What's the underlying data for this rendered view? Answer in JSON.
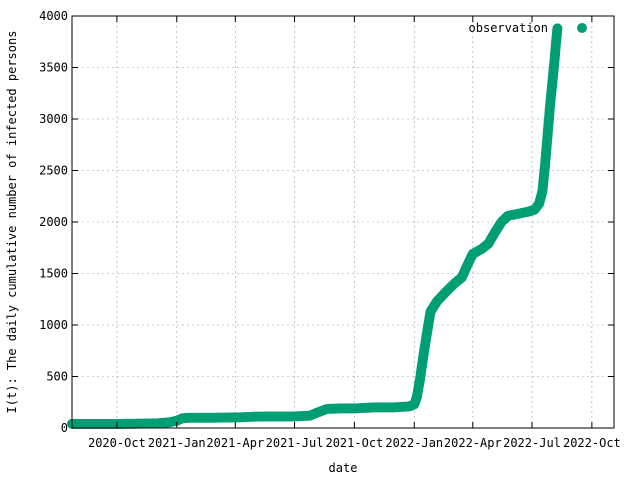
{
  "chart_data": {
    "type": "scatter",
    "title": "",
    "xlabel": "date",
    "ylabel": "I(t): The daily cumulative number of infected persons",
    "xlim": [
      "2020-07-24",
      "2022-11-04"
    ],
    "ylim": [
      0,
      4000
    ],
    "grid": true,
    "legend": {
      "placement": "top-right"
    },
    "x_ticks": [
      {
        "date": "2020-10-01",
        "label": "2020-Oct"
      },
      {
        "date": "2021-01-01",
        "label": "2021-Jan"
      },
      {
        "date": "2021-04-01",
        "label": "2021-Apr"
      },
      {
        "date": "2021-07-01",
        "label": "2021-Jul"
      },
      {
        "date": "2021-10-01",
        "label": "2021-Oct"
      },
      {
        "date": "2022-01-01",
        "label": "2022-Jan"
      },
      {
        "date": "2022-04-01",
        "label": "2022-Apr"
      },
      {
        "date": "2022-07-01",
        "label": "2022-Jul"
      },
      {
        "date": "2022-10-01",
        "label": "2022-Oct"
      }
    ],
    "y_ticks": [
      0,
      500,
      1000,
      1500,
      2000,
      2500,
      3000,
      3500,
      4000
    ],
    "series": [
      {
        "name": "observation",
        "color": "#009e73",
        "points": [
          {
            "x": "2020-07-24",
            "y": 40
          },
          {
            "x": "2020-09-01",
            "y": 40
          },
          {
            "x": "2020-10-01",
            "y": 40
          },
          {
            "x": "2020-11-01",
            "y": 42
          },
          {
            "x": "2020-12-01",
            "y": 45
          },
          {
            "x": "2020-12-20",
            "y": 55
          },
          {
            "x": "2021-01-01",
            "y": 70
          },
          {
            "x": "2021-01-10",
            "y": 95
          },
          {
            "x": "2021-01-20",
            "y": 100
          },
          {
            "x": "2021-03-01",
            "y": 100
          },
          {
            "x": "2021-04-01",
            "y": 102
          },
          {
            "x": "2021-05-01",
            "y": 110
          },
          {
            "x": "2021-06-01",
            "y": 112
          },
          {
            "x": "2021-07-01",
            "y": 112
          },
          {
            "x": "2021-07-25",
            "y": 120
          },
          {
            "x": "2021-08-05",
            "y": 150
          },
          {
            "x": "2021-08-20",
            "y": 185
          },
          {
            "x": "2021-09-10",
            "y": 190
          },
          {
            "x": "2021-10-01",
            "y": 190
          },
          {
            "x": "2021-11-01",
            "y": 200
          },
          {
            "x": "2021-12-01",
            "y": 200
          },
          {
            "x": "2021-12-25",
            "y": 210
          },
          {
            "x": "2022-01-01",
            "y": 230
          },
          {
            "x": "2022-01-05",
            "y": 300
          },
          {
            "x": "2022-01-10",
            "y": 480
          },
          {
            "x": "2022-01-15",
            "y": 700
          },
          {
            "x": "2022-01-20",
            "y": 900
          },
          {
            "x": "2022-01-26",
            "y": 1130
          },
          {
            "x": "2022-02-05",
            "y": 1230
          },
          {
            "x": "2022-02-20",
            "y": 1330
          },
          {
            "x": "2022-03-05",
            "y": 1410
          },
          {
            "x": "2022-03-15",
            "y": 1460
          },
          {
            "x": "2022-03-25",
            "y": 1600
          },
          {
            "x": "2022-04-01",
            "y": 1690
          },
          {
            "x": "2022-04-15",
            "y": 1740
          },
          {
            "x": "2022-04-25",
            "y": 1790
          },
          {
            "x": "2022-05-05",
            "y": 1900
          },
          {
            "x": "2022-05-15",
            "y": 2000
          },
          {
            "x": "2022-05-25",
            "y": 2060
          },
          {
            "x": "2022-06-10",
            "y": 2080
          },
          {
            "x": "2022-06-25",
            "y": 2100
          },
          {
            "x": "2022-07-05",
            "y": 2120
          },
          {
            "x": "2022-07-12",
            "y": 2180
          },
          {
            "x": "2022-07-17",
            "y": 2300
          },
          {
            "x": "2022-07-21",
            "y": 2550
          },
          {
            "x": "2022-07-25",
            "y": 2850
          },
          {
            "x": "2022-07-29",
            "y": 3150
          },
          {
            "x": "2022-08-02",
            "y": 3400
          },
          {
            "x": "2022-08-05",
            "y": 3600
          },
          {
            "x": "2022-08-07",
            "y": 3750
          },
          {
            "x": "2022-08-09",
            "y": 3880
          }
        ]
      }
    ]
  }
}
